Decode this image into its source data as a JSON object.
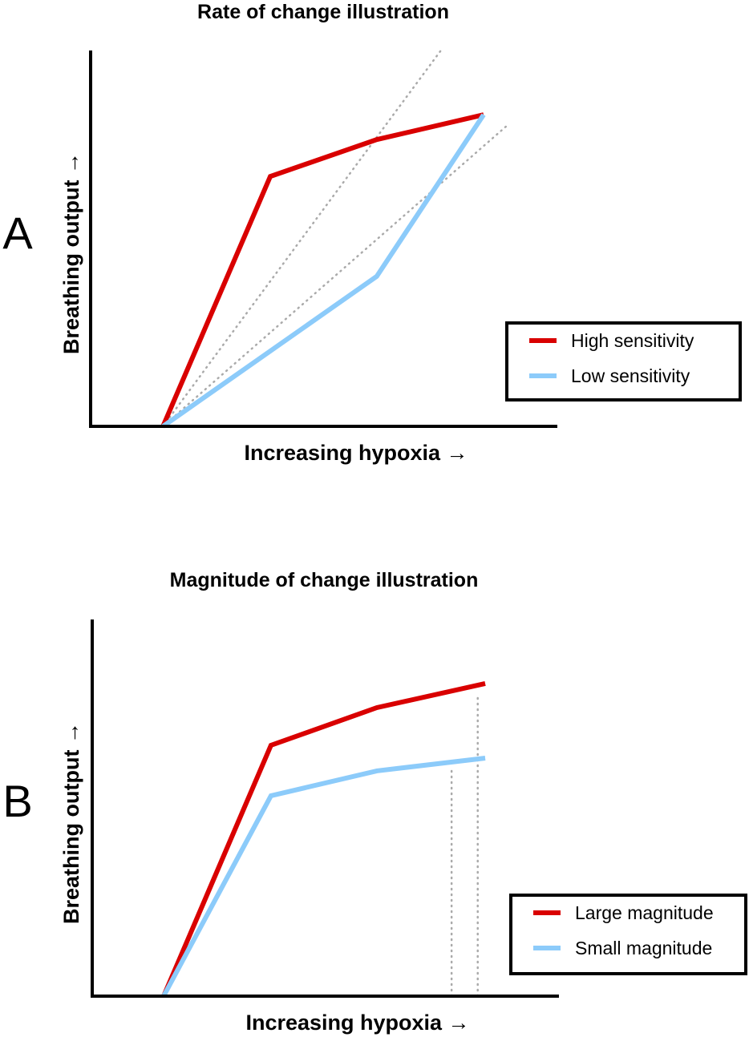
{
  "colors": {
    "red": "#d90000",
    "blue": "#8ccbfa",
    "guide": "#aaaaaa",
    "axis": "#000000"
  },
  "chart_data": [
    {
      "type": "line",
      "panel_label": "A",
      "title": "Rate of change illustration",
      "xlabel": "Increasing hypoxia →",
      "ylabel": "Breathing output →",
      "xlim": [
        0,
        10
      ],
      "ylim": [
        0,
        10
      ],
      "legend_position": "lower-right",
      "series": [
        {
          "name": "High sensitivity",
          "color": "red",
          "x": [
            1.55,
            3.85,
            6.13,
            8.42
          ],
          "y": [
            0,
            6.65,
            7.63,
            8.29
          ]
        },
        {
          "name": "Low sensitivity",
          "color": "blue",
          "x": [
            1.55,
            6.13,
            8.42
          ],
          "y": [
            0,
            3.99,
            8.29
          ]
        }
      ],
      "guides": [
        {
          "style": "dotted",
          "x": [
            1.55,
            7.54
          ],
          "y": [
            0,
            10.06
          ]
        },
        {
          "style": "dotted",
          "x": [
            1.55,
            8.92
          ],
          "y": [
            0,
            8.0
          ]
        }
      ]
    },
    {
      "type": "line",
      "panel_label": "B",
      "title": "Magnitude of change illustration",
      "xlabel": "Increasing hypoxia →",
      "ylabel": "Breathing output →",
      "xlim": [
        0,
        10
      ],
      "ylim": [
        0,
        10
      ],
      "legend_position": "lower-right",
      "series": [
        {
          "name": "Large magnitude",
          "color": "red",
          "x": [
            1.53,
            3.83,
            6.1,
            8.42
          ],
          "y": [
            0,
            6.66,
            7.66,
            8.3
          ]
        },
        {
          "name": "Small magnitude",
          "color": "blue",
          "x": [
            1.53,
            3.83,
            6.1,
            8.42
          ],
          "y": [
            0,
            5.32,
            5.98,
            6.32
          ]
        }
      ],
      "guides": [
        {
          "style": "dotted",
          "x": [
            7.7,
            7.7
          ],
          "y": [
            0,
            5.98
          ]
        },
        {
          "style": "dotted",
          "x": [
            8.26,
            8.26
          ],
          "y": [
            0,
            8.02
          ]
        }
      ]
    }
  ]
}
